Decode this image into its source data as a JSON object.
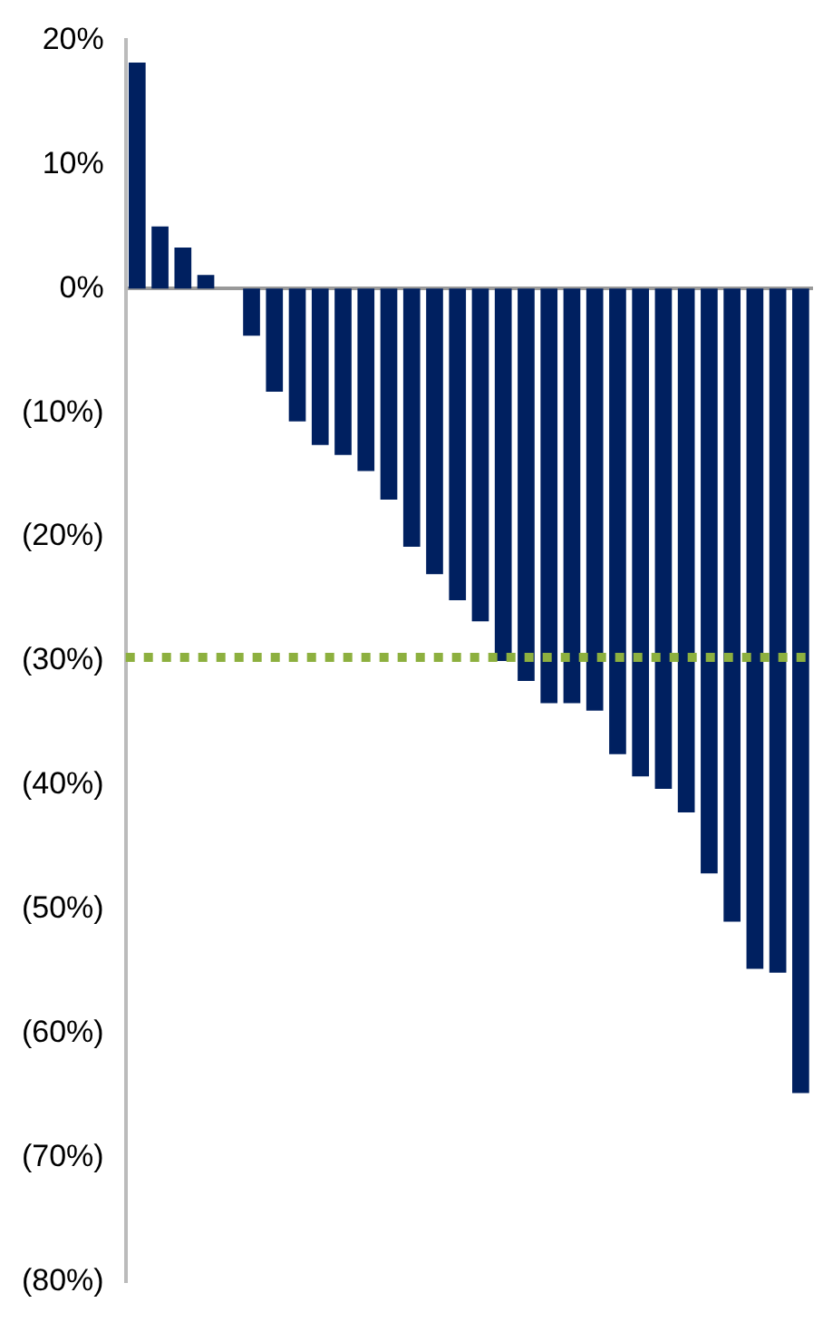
{
  "chart_data": {
    "type": "bar",
    "categories": [
      null,
      null,
      null,
      null,
      null,
      null,
      null,
      null,
      null,
      null,
      null,
      null,
      null,
      null,
      null,
      null,
      null,
      null,
      null,
      null,
      null,
      null,
      null,
      null,
      null,
      null,
      null,
      null,
      null,
      null
    ],
    "values": [
      18.2,
      5.0,
      3.3,
      1.1,
      0,
      -3.8,
      -8.3,
      -10.7,
      -12.6,
      -13.4,
      -14.7,
      -17.0,
      -20.8,
      -23.0,
      -25.1,
      -26.8,
      -30.0,
      -31.6,
      -33.4,
      -33.4,
      -34.0,
      -37.5,
      -39.3,
      -40.3,
      -42.2,
      -47.1,
      -51.0,
      -54.8,
      -55.1,
      -64.8
    ],
    "color": "#002060",
    "ylim": [
      -80,
      20
    ],
    "yticks": [
      {
        "value": 20,
        "label": "20%"
      },
      {
        "value": 10,
        "label": "10%"
      },
      {
        "value": 0,
        "label": "0%"
      },
      {
        "value": -10,
        "label": "(10%)"
      },
      {
        "value": -20,
        "label": "(20%)"
      },
      {
        "value": -30,
        "label": "(30%)"
      },
      {
        "value": -40,
        "label": "(40%)"
      },
      {
        "value": -50,
        "label": "(50%)"
      },
      {
        "value": -60,
        "label": "(60%)"
      },
      {
        "value": -70,
        "label": "(70%)"
      },
      {
        "value": -80,
        "label": "(80%)"
      }
    ],
    "ref_lines": [
      {
        "axis": "y",
        "value": -29.7,
        "color": "#8db03f",
        "line_style": "dotted"
      }
    ],
    "tick_labels": "y",
    "grid": false,
    "legend": false
  }
}
